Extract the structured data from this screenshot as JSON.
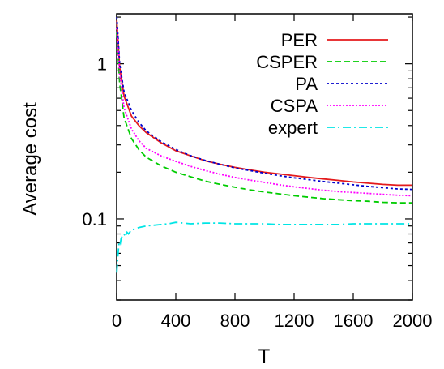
{
  "chart_data": {
    "type": "line",
    "title": "",
    "xlabel": "T",
    "ylabel": "Average cost",
    "xlim": [
      0,
      2000
    ],
    "ylim": [
      0.03,
      2.1
    ],
    "yscale": "log",
    "grid": false,
    "legend_position": "top-right",
    "x_ticks": [
      0,
      400,
      800,
      1200,
      1600,
      2000
    ],
    "x_tick_labels": [
      "0",
      "400",
      "800",
      "1200",
      "1600",
      "2000"
    ],
    "y_ticks": [
      0.1,
      1
    ],
    "y_tick_labels": [
      "0.1",
      "1"
    ],
    "series": [
      {
        "name": "PER",
        "color": "#e41a1c",
        "dash": "solid",
        "points": [
          [
            1,
            1.9
          ],
          [
            20,
            0.95
          ],
          [
            50,
            0.62
          ],
          [
            100,
            0.46
          ],
          [
            150,
            0.4
          ],
          [
            200,
            0.36
          ],
          [
            300,
            0.31
          ],
          [
            400,
            0.275
          ],
          [
            500,
            0.255
          ],
          [
            600,
            0.237
          ],
          [
            700,
            0.225
          ],
          [
            800,
            0.215
          ],
          [
            900,
            0.207
          ],
          [
            1000,
            0.2
          ],
          [
            1100,
            0.195
          ],
          [
            1200,
            0.19
          ],
          [
            1300,
            0.185
          ],
          [
            1400,
            0.181
          ],
          [
            1500,
            0.177
          ],
          [
            1600,
            0.173
          ],
          [
            1700,
            0.17
          ],
          [
            1800,
            0.167
          ],
          [
            1900,
            0.165
          ],
          [
            2000,
            0.165
          ]
        ]
      },
      {
        "name": "CSPER",
        "color": "#00cc00",
        "dash": "dashed",
        "points": [
          [
            1,
            1.6
          ],
          [
            20,
            0.75
          ],
          [
            50,
            0.45
          ],
          [
            100,
            0.33
          ],
          [
            150,
            0.28
          ],
          [
            200,
            0.25
          ],
          [
            300,
            0.22
          ],
          [
            400,
            0.2
          ],
          [
            500,
            0.187
          ],
          [
            600,
            0.175
          ],
          [
            700,
            0.167
          ],
          [
            800,
            0.16
          ],
          [
            900,
            0.154
          ],
          [
            1000,
            0.149
          ],
          [
            1100,
            0.145
          ],
          [
            1200,
            0.141
          ],
          [
            1300,
            0.138
          ],
          [
            1400,
            0.135
          ],
          [
            1500,
            0.133
          ],
          [
            1600,
            0.131
          ],
          [
            1700,
            0.13
          ],
          [
            1800,
            0.128
          ],
          [
            1900,
            0.127
          ],
          [
            2000,
            0.127
          ]
        ]
      },
      {
        "name": "PA",
        "color": "#0000cc",
        "dash": "dotted",
        "points": [
          [
            1,
            2.0
          ],
          [
            20,
            1.0
          ],
          [
            50,
            0.66
          ],
          [
            100,
            0.5
          ],
          [
            150,
            0.42
          ],
          [
            200,
            0.37
          ],
          [
            300,
            0.315
          ],
          [
            400,
            0.28
          ],
          [
            500,
            0.256
          ],
          [
            600,
            0.238
          ],
          [
            700,
            0.225
          ],
          [
            800,
            0.213
          ],
          [
            900,
            0.205
          ],
          [
            1000,
            0.197
          ],
          [
            1100,
            0.19
          ],
          [
            1200,
            0.184
          ],
          [
            1300,
            0.179
          ],
          [
            1400,
            0.174
          ],
          [
            1500,
            0.17
          ],
          [
            1600,
            0.166
          ],
          [
            1700,
            0.162
          ],
          [
            1800,
            0.159
          ],
          [
            1900,
            0.156
          ],
          [
            2000,
            0.155
          ]
        ]
      },
      {
        "name": "CSPA",
        "color": "#ff00ff",
        "dash": "dotted-fine",
        "points": [
          [
            1,
            1.7
          ],
          [
            20,
            0.85
          ],
          [
            50,
            0.52
          ],
          [
            100,
            0.38
          ],
          [
            150,
            0.32
          ],
          [
            200,
            0.285
          ],
          [
            300,
            0.255
          ],
          [
            400,
            0.235
          ],
          [
            500,
            0.218
          ],
          [
            600,
            0.205
          ],
          [
            700,
            0.194
          ],
          [
            800,
            0.185
          ],
          [
            900,
            0.178
          ],
          [
            1000,
            0.172
          ],
          [
            1100,
            0.166
          ],
          [
            1200,
            0.161
          ],
          [
            1300,
            0.157
          ],
          [
            1400,
            0.153
          ],
          [
            1500,
            0.15
          ],
          [
            1600,
            0.148
          ],
          [
            1700,
            0.146
          ],
          [
            1800,
            0.144
          ],
          [
            1900,
            0.142
          ],
          [
            2000,
            0.141
          ]
        ]
      },
      {
        "name": "expert",
        "color": "#00e5e5",
        "dash": "dash-dot",
        "points": [
          [
            1,
            0.045
          ],
          [
            5,
            0.052
          ],
          [
            10,
            0.06
          ],
          [
            15,
            0.068
          ],
          [
            20,
            0.072
          ],
          [
            25,
            0.07
          ],
          [
            30,
            0.075
          ],
          [
            40,
            0.078
          ],
          [
            50,
            0.08
          ],
          [
            60,
            0.077
          ],
          [
            70,
            0.082
          ],
          [
            80,
            0.08
          ],
          [
            100,
            0.085
          ],
          [
            120,
            0.086
          ],
          [
            150,
            0.088
          ],
          [
            200,
            0.09
          ],
          [
            250,
            0.091
          ],
          [
            300,
            0.092
          ],
          [
            350,
            0.093
          ],
          [
            400,
            0.095
          ],
          [
            450,
            0.094
          ],
          [
            500,
            0.093
          ],
          [
            600,
            0.094
          ],
          [
            700,
            0.094
          ],
          [
            800,
            0.093
          ],
          [
            900,
            0.093
          ],
          [
            1000,
            0.093
          ],
          [
            1100,
            0.092
          ],
          [
            1200,
            0.092
          ],
          [
            1300,
            0.092
          ],
          [
            1400,
            0.092
          ],
          [
            1500,
            0.092
          ],
          [
            1600,
            0.093
          ],
          [
            1700,
            0.093
          ],
          [
            1800,
            0.093
          ],
          [
            1900,
            0.093
          ],
          [
            2000,
            0.093
          ]
        ]
      }
    ]
  }
}
